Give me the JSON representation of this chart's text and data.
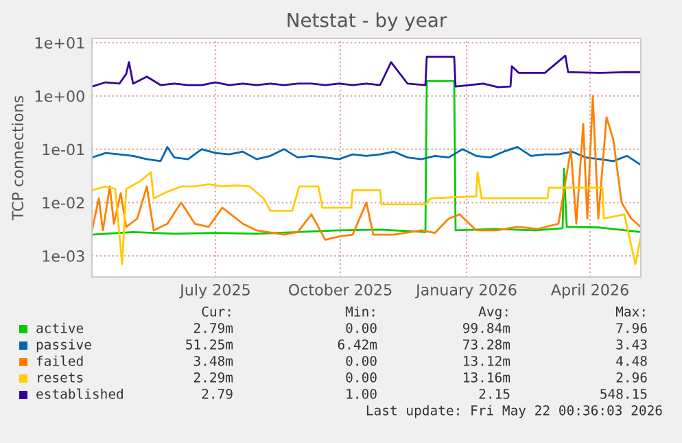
{
  "chart_data": {
    "type": "line",
    "title": "Netstat - by year",
    "ylabel": "TCP connections",
    "log": "y",
    "xlim": [
      "2025-04-17",
      "2026-05-22"
    ],
    "ylim": [
      0.0004,
      12
    ],
    "xticks": [
      {
        "value": "2025-07-16",
        "label": "July 2025"
      },
      {
        "value": "2025-10-15",
        "label": "October 2025"
      },
      {
        "value": "2026-01-15",
        "label": "January 2026"
      },
      {
        "value": "2026-04-15",
        "label": "April 2026"
      }
    ],
    "yticks": [
      {
        "value": 0.001,
        "label": "1e-03"
      },
      {
        "value": 0.01,
        "label": "1e-02"
      },
      {
        "value": 0.1,
        "label": "1e-01"
      },
      {
        "value": 1,
        "label": "1e+00"
      },
      {
        "value": 10,
        "label": "1e+01"
      }
    ],
    "grid": true,
    "legend": "bottom",
    "series": [
      {
        "name": "active",
        "color": "#00cc00",
        "x": [
          "2025-04-17",
          "2025-05-17",
          "2025-06-16",
          "2025-07-16",
          "2025-08-15",
          "2025-09-14",
          "2025-10-14",
          "2025-11-13",
          "2025-12-16",
          "2025-12-17",
          "2026-01-06",
          "2026-01-07",
          "2026-02-06",
          "2026-03-06",
          "2026-03-26",
          "2026-03-27",
          "2026-03-29",
          "2026-04-22",
          "2026-05-22"
        ],
        "values": [
          0.0025,
          0.0028,
          0.0026,
          0.0027,
          0.0026,
          0.0028,
          0.003,
          0.0031,
          0.0028,
          1.9,
          1.9,
          0.003,
          0.0032,
          0.003,
          0.0033,
          0.043,
          0.0035,
          0.0034,
          0.00279
        ]
      },
      {
        "name": "passive",
        "color": "#0066b3",
        "x": [
          "2025-04-17",
          "2025-04-27",
          "2025-05-07",
          "2025-05-17",
          "2025-05-27",
          "2025-06-06",
          "2025-06-11",
          "2025-06-16",
          "2025-06-26",
          "2025-07-06",
          "2025-07-16",
          "2025-07-26",
          "2025-08-05",
          "2025-08-15",
          "2025-08-25",
          "2025-09-04",
          "2025-09-14",
          "2025-09-24",
          "2025-10-04",
          "2025-10-14",
          "2025-10-24",
          "2025-11-03",
          "2025-11-13",
          "2025-11-23",
          "2025-12-03",
          "2025-12-13",
          "2025-12-23",
          "2026-01-02",
          "2026-01-12",
          "2026-01-22",
          "2026-02-01",
          "2026-02-11",
          "2026-02-21",
          "2026-03-03",
          "2026-03-13",
          "2026-03-23",
          "2026-04-02",
          "2026-04-12",
          "2026-04-22",
          "2026-05-02",
          "2026-05-12",
          "2026-05-22"
        ],
        "values": [
          0.07,
          0.085,
          0.08,
          0.075,
          0.065,
          0.06,
          0.11,
          0.07,
          0.065,
          0.1,
          0.085,
          0.08,
          0.09,
          0.065,
          0.075,
          0.1,
          0.07,
          0.075,
          0.07,
          0.065,
          0.08,
          0.075,
          0.08,
          0.09,
          0.07,
          0.065,
          0.075,
          0.07,
          0.1,
          0.075,
          0.07,
          0.09,
          0.11,
          0.075,
          0.08,
          0.08,
          0.09,
          0.07,
          0.065,
          0.06,
          0.075,
          0.051
        ]
      },
      {
        "name": "failed",
        "color": "#ff8000",
        "x": [
          "2025-04-17",
          "2025-04-22",
          "2025-04-25",
          "2025-04-30",
          "2025-05-03",
          "2025-05-08",
          "2025-05-12",
          "2025-05-20",
          "2025-05-27",
          "2025-06-01",
          "2025-06-11",
          "2025-06-21",
          "2025-07-01",
          "2025-07-11",
          "2025-07-21",
          "2025-08-05",
          "2025-08-15",
          "2025-09-04",
          "2025-09-14",
          "2025-09-24",
          "2025-10-04",
          "2025-10-14",
          "2025-10-24",
          "2025-11-03",
          "2025-11-08",
          "2025-11-23",
          "2025-12-13",
          "2025-12-23",
          "2026-01-02",
          "2026-01-10",
          "2026-01-22",
          "2026-02-06",
          "2026-02-21",
          "2026-03-08",
          "2026-03-23",
          "2026-04-01",
          "2026-04-05",
          "2026-04-10",
          "2026-04-13",
          "2026-04-17",
          "2026-04-21",
          "2026-04-27",
          "2026-05-02",
          "2026-05-08",
          "2026-05-15",
          "2026-05-22"
        ],
        "values": [
          0.003,
          0.012,
          0.003,
          0.02,
          0.004,
          0.015,
          0.0035,
          0.005,
          0.02,
          0.003,
          0.004,
          0.01,
          0.004,
          0.0035,
          0.008,
          0.004,
          0.003,
          0.0025,
          0.0028,
          0.006,
          0.002,
          0.0023,
          0.0025,
          0.01,
          0.0025,
          0.0025,
          0.003,
          0.0027,
          0.005,
          0.006,
          0.003,
          0.003,
          0.0035,
          0.0032,
          0.004,
          0.1,
          0.004,
          0.3,
          0.005,
          1.0,
          0.005,
          0.4,
          0.15,
          0.01,
          0.005,
          0.00348
        ]
      },
      {
        "name": "resets",
        "color": "#ffcc00",
        "x": [
          "2025-04-17",
          "2025-04-27",
          "2025-05-04",
          "2025-05-09",
          "2025-05-12",
          "2025-05-22",
          "2025-05-30",
          "2025-06-01",
          "2025-06-11",
          "2025-06-21",
          "2025-07-01",
          "2025-07-11",
          "2025-07-21",
          "2025-07-31",
          "2025-08-10",
          "2025-08-20",
          "2025-08-25",
          "2025-09-10",
          "2025-09-15",
          "2025-09-29",
          "2025-10-02",
          "2025-10-23",
          "2025-10-24",
          "2025-11-13",
          "2025-11-14",
          "2025-12-16",
          "2025-12-20",
          "2026-01-22",
          "2026-01-23",
          "2026-01-26",
          "2026-03-15",
          "2026-03-16",
          "2026-04-24",
          "2026-04-25",
          "2026-05-10",
          "2026-05-18",
          "2026-05-22"
        ],
        "values": [
          0.017,
          0.02,
          0.018,
          0.0007,
          0.018,
          0.025,
          0.037,
          0.012,
          0.016,
          0.02,
          0.02,
          0.022,
          0.02,
          0.021,
          0.02,
          0.012,
          0.007,
          0.007,
          0.02,
          0.02,
          0.008,
          0.008,
          0.017,
          0.017,
          0.0093,
          0.0093,
          0.012,
          0.013,
          0.037,
          0.012,
          0.012,
          0.019,
          0.019,
          0.005,
          0.006,
          0.0007,
          0.00229
        ]
      },
      {
        "name": "established",
        "color": "#330099",
        "x": [
          "2025-04-17",
          "2025-04-27",
          "2025-05-07",
          "2025-05-12",
          "2025-05-14",
          "2025-05-17",
          "2025-05-27",
          "2025-06-06",
          "2025-06-16",
          "2025-06-26",
          "2025-07-06",
          "2025-07-16",
          "2025-07-26",
          "2025-08-05",
          "2025-08-15",
          "2025-08-25",
          "2025-09-04",
          "2025-09-14",
          "2025-09-24",
          "2025-10-04",
          "2025-10-14",
          "2025-10-24",
          "2025-11-03",
          "2025-11-13",
          "2025-11-21",
          "2025-12-03",
          "2025-12-16",
          "2025-12-17",
          "2026-01-06",
          "2026-01-07",
          "2026-01-17",
          "2026-01-27",
          "2026-02-07",
          "2026-02-16",
          "2026-02-17",
          "2026-02-22",
          "2026-03-13",
          "2026-03-28",
          "2026-03-30",
          "2026-04-22",
          "2026-05-12",
          "2026-05-22"
        ],
        "values": [
          1.5,
          1.8,
          1.7,
          2.6,
          4.3,
          1.7,
          2.3,
          1.6,
          1.7,
          1.6,
          1.6,
          1.8,
          1.6,
          1.7,
          1.6,
          1.7,
          1.6,
          1.7,
          1.7,
          1.6,
          1.7,
          1.6,
          1.7,
          1.6,
          4.3,
          1.7,
          1.6,
          5.4,
          5.4,
          1.5,
          1.6,
          1.7,
          1.46,
          1.5,
          3.6,
          2.7,
          2.7,
          5.7,
          2.8,
          2.7,
          2.8,
          2.79
        ]
      }
    ],
    "annotations": [
      "Cur:",
      "Min:",
      "Avg:",
      "Max:",
      "2.79m",
      "0.00",
      "99.84m",
      "7.96",
      "51.25m",
      "6.42m",
      "73.28m",
      "3.43",
      "3.48m",
      "0.00",
      "13.12m",
      "4.48",
      "2.29m",
      "0.00",
      "13.16m",
      "2.96",
      "2.79",
      "1.00",
      "2.15",
      "548.15",
      "Last update: Fri May 22 00:36:03 2026"
    ]
  }
}
